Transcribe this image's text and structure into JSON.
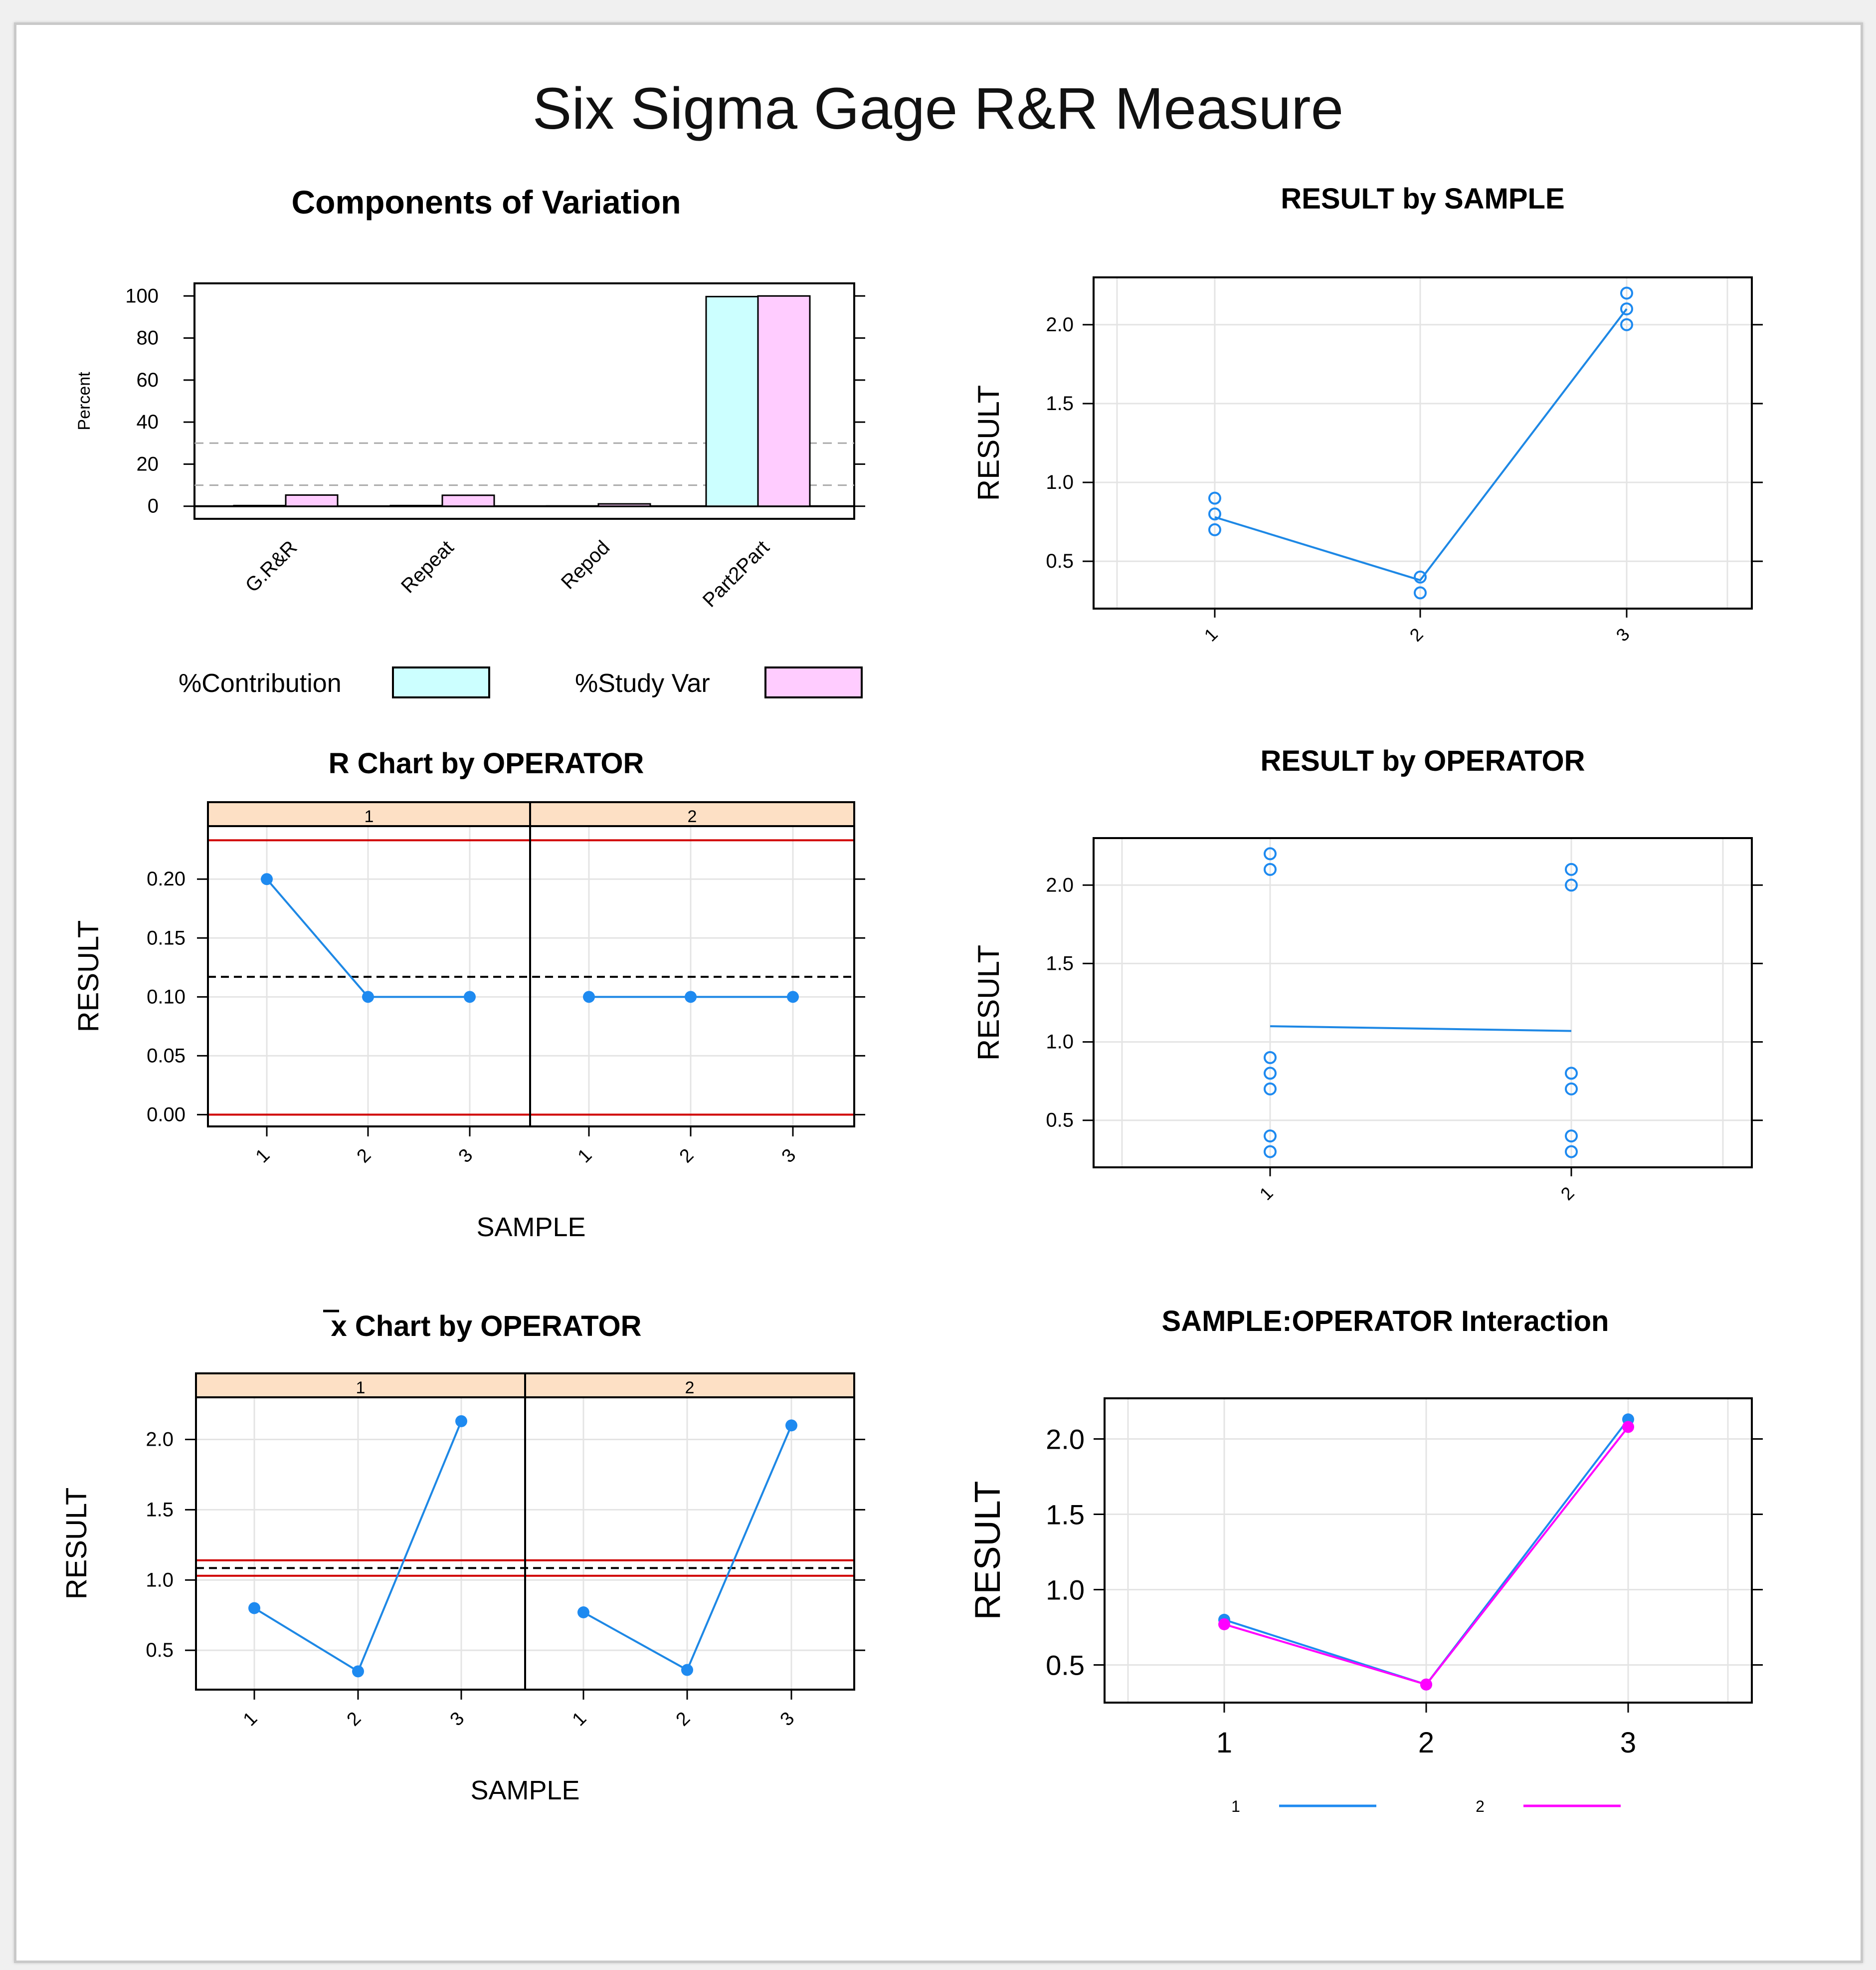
{
  "page": {
    "title": "Six Sigma Gage R&R Measure"
  },
  "colors": {
    "blue": "#1e88e5",
    "pointBlue": "#1e8af0",
    "magenta": "#ff00ff",
    "cyanBar": "#ccffff",
    "pinkBar": "#ffccff",
    "stripFill": "#fde0c5",
    "red": "#d00000",
    "grid": "#e4e4e4",
    "refGray": "#aaaaaa"
  },
  "chart_data": [
    {
      "id": "components",
      "type": "bar",
      "title": "Components of Variation",
      "ylabel": "Percent",
      "categories": [
        "G.R&R",
        "Repeat",
        "Repod",
        "Part2Part"
      ],
      "series": [
        {
          "name": "%Contribution",
          "values": [
            0.3,
            0.3,
            0.1,
            99.7
          ]
        },
        {
          "name": "%Study Var",
          "values": [
            5.3,
            5.2,
            1.1,
            100
          ]
        }
      ],
      "yticks": [
        0,
        20,
        40,
        60,
        80,
        100
      ],
      "ylim": [
        -6,
        106
      ],
      "ref_lines": [
        10,
        30
      ],
      "legend": [
        {
          "label": "%Contribution"
        },
        {
          "label": "%Study Var"
        }
      ]
    },
    {
      "id": "result-by-sample",
      "type": "scatter",
      "title": "RESULT by SAMPLE",
      "ylabel": "RESULT",
      "categories": [
        "1",
        "2",
        "3"
      ],
      "points": [
        {
          "x": "1",
          "y": [
            0.9,
            0.8,
            0.7
          ]
        },
        {
          "x": "2",
          "y": [
            0.4,
            0.3
          ]
        },
        {
          "x": "3",
          "y": [
            2.2,
            2.1,
            2.0
          ]
        }
      ],
      "means": [
        0.78,
        0.38,
        2.1
      ],
      "yticks": [
        "0.5",
        "1.0",
        "1.5",
        "2.0"
      ],
      "ylim": [
        0.2,
        2.3
      ]
    },
    {
      "id": "r-chart",
      "type": "line",
      "title": "R Chart by OPERATOR",
      "ylabel": "RESULT",
      "xlabel": "SAMPLE",
      "panels": [
        {
          "label": "1",
          "categories": [
            "1",
            "2",
            "3"
          ],
          "values": [
            0.2,
            0.1,
            0.1
          ]
        },
        {
          "label": "2",
          "categories": [
            "1",
            "2",
            "3"
          ],
          "values": [
            0.1,
            0.1,
            0.1
          ]
        }
      ],
      "center": 0.117,
      "ucl": 0.233,
      "lcl": 0,
      "yticks": [
        "0.00",
        "0.05",
        "0.10",
        "0.15",
        "0.20"
      ],
      "ylim": [
        -0.01,
        0.245
      ]
    },
    {
      "id": "result-by-operator",
      "type": "scatter",
      "title": "RESULT by OPERATOR",
      "ylabel": "RESULT",
      "categories": [
        "1",
        "2"
      ],
      "points": [
        {
          "x": "1",
          "y": [
            2.2,
            2.1,
            0.9,
            0.8,
            0.7,
            0.4,
            0.3
          ]
        },
        {
          "x": "2",
          "y": [
            2.1,
            2.0,
            0.8,
            0.7,
            0.4,
            0.3
          ]
        }
      ],
      "means": [
        1.1,
        1.07
      ],
      "yticks": [
        "0.5",
        "1.0",
        "1.5",
        "2.0"
      ],
      "ylim": [
        0.2,
        2.3
      ]
    },
    {
      "id": "xbar-chart",
      "type": "line",
      "title": "x Chart by OPERATOR",
      "title_bar": "x",
      "title_rest": " Chart by OPERATOR",
      "ylabel": "RESULT",
      "xlabel": "SAMPLE",
      "panels": [
        {
          "label": "1",
          "categories": [
            "1",
            "2",
            "3"
          ],
          "values": [
            0.8,
            0.35,
            2.13
          ]
        },
        {
          "label": "2",
          "categories": [
            "1",
            "2",
            "3"
          ],
          "values": [
            0.77,
            0.36,
            2.1
          ]
        }
      ],
      "center": 1.085,
      "ucl": 1.14,
      "lcl": 1.03,
      "yticks": [
        "0.5",
        "1.0",
        "1.5",
        "2.0"
      ],
      "ylim": [
        0.22,
        2.3
      ]
    },
    {
      "id": "interaction",
      "type": "line",
      "title": "SAMPLE:OPERATOR Interaction",
      "ylabel": "RESULT",
      "categories": [
        "1",
        "2",
        "3"
      ],
      "series": [
        {
          "name": "1",
          "values": [
            0.8,
            0.37,
            2.13
          ]
        },
        {
          "name": "2",
          "values": [
            0.77,
            0.37,
            2.08
          ]
        }
      ],
      "yticks": [
        "0.5",
        "1.0",
        "1.5",
        "2.0"
      ],
      "ylim": [
        0.25,
        2.27
      ],
      "legend": [
        {
          "label": "1"
        },
        {
          "label": "2"
        }
      ]
    }
  ]
}
